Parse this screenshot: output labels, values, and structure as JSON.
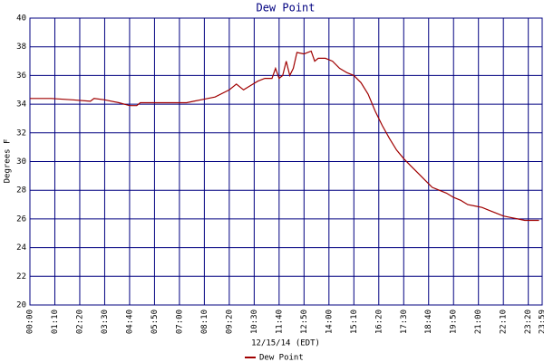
{
  "chart_data": {
    "type": "line",
    "title": "Dew Point",
    "x_label": "12/15/14 (EDT)",
    "y_label": "Degrees F",
    "x": [
      0,
      60,
      120,
      170,
      180,
      210,
      250,
      280,
      300,
      310,
      360,
      420,
      440,
      460,
      480,
      520,
      560,
      580,
      600,
      620,
      640,
      660,
      680,
      690,
      700,
      710,
      720,
      730,
      740,
      750,
      770,
      790,
      800,
      810,
      830,
      850,
      870,
      890,
      910,
      930,
      950,
      970,
      990,
      1010,
      1030,
      1050,
      1070,
      1090,
      1110,
      1130,
      1150,
      1170,
      1190,
      1210,
      1230,
      1250,
      1270,
      1290,
      1310,
      1330,
      1350,
      1370,
      1390,
      1410,
      1430
    ],
    "series": [
      {
        "name": "Dew Point",
        "color": "#a00000",
        "values": [
          34.4,
          34.4,
          34.3,
          34.2,
          34.4,
          34.3,
          34.1,
          33.9,
          33.9,
          34.1,
          34.1,
          34.1,
          34.1,
          34.2,
          34.3,
          34.5,
          35.0,
          35.4,
          35.0,
          35.3,
          35.6,
          35.8,
          35.8,
          36.5,
          35.8,
          36.0,
          37.0,
          36.0,
          36.5,
          37.6,
          37.5,
          37.7,
          37.0,
          37.2,
          37.2,
          37.0,
          36.5,
          36.2,
          36.0,
          35.5,
          34.7,
          33.5,
          32.5,
          31.6,
          30.8,
          30.2,
          29.7,
          29.2,
          28.7,
          28.2,
          28.0,
          27.8,
          27.5,
          27.3,
          27.0,
          26.9,
          26.8,
          26.6,
          26.4,
          26.2,
          26.1,
          26.0,
          25.9,
          25.9,
          25.9
        ]
      }
    ],
    "xlim": [
      0,
      1439
    ],
    "xticks": [
      {
        "value": 0,
        "label": "00:00"
      },
      {
        "value": 70,
        "label": "01:10"
      },
      {
        "value": 140,
        "label": "02:20"
      },
      {
        "value": 210,
        "label": "03:30"
      },
      {
        "value": 280,
        "label": "04:40"
      },
      {
        "value": 350,
        "label": "05:50"
      },
      {
        "value": 420,
        "label": "07:00"
      },
      {
        "value": 490,
        "label": "08:10"
      },
      {
        "value": 560,
        "label": "09:20"
      },
      {
        "value": 630,
        "label": "10:30"
      },
      {
        "value": 700,
        "label": "11:40"
      },
      {
        "value": 770,
        "label": "12:50"
      },
      {
        "value": 840,
        "label": "14:00"
      },
      {
        "value": 910,
        "label": "15:10"
      },
      {
        "value": 980,
        "label": "16:20"
      },
      {
        "value": 1050,
        "label": "17:30"
      },
      {
        "value": 1120,
        "label": "18:40"
      },
      {
        "value": 1190,
        "label": "19:50"
      },
      {
        "value": 1260,
        "label": "21:00"
      },
      {
        "value": 1330,
        "label": "22:10"
      },
      {
        "value": 1400,
        "label": "23:20"
      },
      {
        "value": 1439,
        "label": "23:59"
      }
    ],
    "ylim": [
      20,
      40
    ],
    "yticks": [
      20,
      22,
      24,
      26,
      28,
      30,
      32,
      34,
      36,
      38,
      40
    ],
    "grid": true
  }
}
